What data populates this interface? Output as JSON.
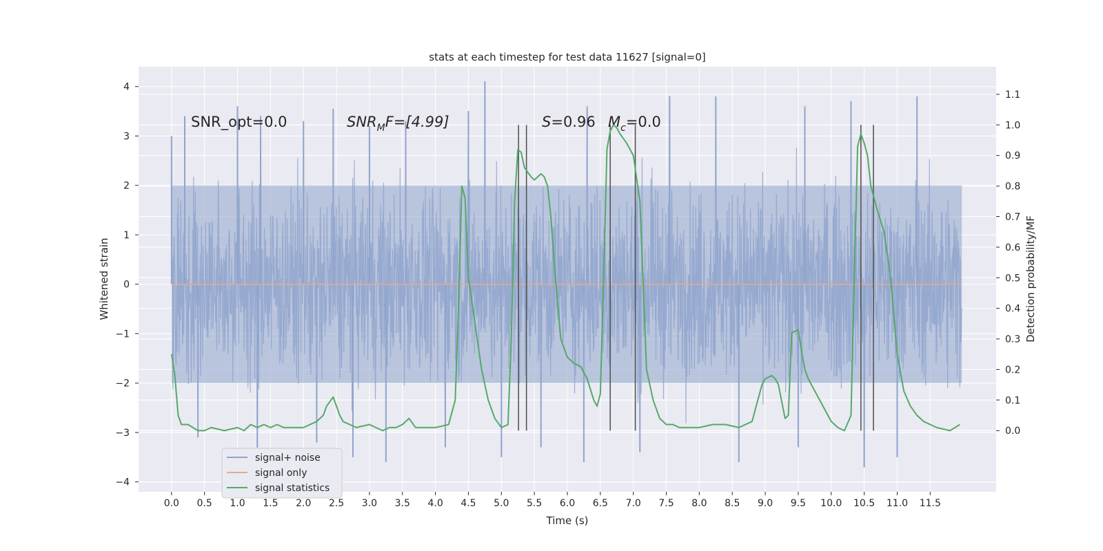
{
  "chart_data": {
    "type": "line",
    "title": "stats at each timestep for test data 11627 [signal=0]",
    "xlabel": "Time (s)",
    "ylabel_left": "Whitened strain",
    "ylabel_right": "Detection probability/MF",
    "xlim": [
      -0.5,
      12.5
    ],
    "ylim_left": [
      -4.2,
      4.4
    ],
    "ylim_right": [
      -0.2,
      1.19
    ],
    "x_ticks": [
      "0.0",
      "0.5",
      "1.0",
      "1.5",
      "2.0",
      "2.5",
      "3.0",
      "3.5",
      "4.0",
      "4.5",
      "5.0",
      "5.5",
      "6.0",
      "6.5",
      "7.0",
      "7.5",
      "8.0",
      "8.5",
      "9.0",
      "9.5",
      "10.0",
      "10.5",
      "11.0",
      "11.5"
    ],
    "y_left_ticks": [
      "4",
      "3",
      "2",
      "1",
      "0",
      "−1",
      "−2",
      "−3",
      "−4"
    ],
    "y_right_ticks": [
      "1.1",
      "1.0",
      "0.9",
      "0.8",
      "0.7",
      "0.6",
      "0.5",
      "0.4",
      "0.3",
      "0.2",
      "0.1",
      "0.0"
    ],
    "grid": true,
    "legend_position": "lower-left",
    "annotations": {
      "snr_opt": "SNR_opt=0.0",
      "snr_mf_main": "SNR",
      "snr_mf_sub": "M",
      "snr_mf_rest": "F=[4.99]",
      "s_main": "S",
      "s_rest": "=0.96",
      "mc_main": "M",
      "mc_sub": "c",
      "mc_rest": "=0.0"
    },
    "series": [
      {
        "name": "signal+ noise",
        "color": "#8fa4cc",
        "x_range": [
          0.0,
          11.98
        ],
        "envelope_typical": [
          -2.0,
          2.0
        ],
        "peaks": [
          {
            "x": 0.0,
            "y": 3.0
          },
          {
            "x": 0.2,
            "y": 3.4
          },
          {
            "x": 1.0,
            "y": 3.6
          },
          {
            "x": 1.35,
            "y": 3.4
          },
          {
            "x": 2.0,
            "y": 3.3
          },
          {
            "x": 2.45,
            "y": 3.55
          },
          {
            "x": 3.0,
            "y": 3.2
          },
          {
            "x": 3.55,
            "y": 3.3
          },
          {
            "x": 4.5,
            "y": 3.5
          },
          {
            "x": 4.75,
            "y": 4.1
          },
          {
            "x": 6.3,
            "y": 3.6
          },
          {
            "x": 7.55,
            "y": 3.8
          },
          {
            "x": 8.25,
            "y": 3.8
          },
          {
            "x": 9.6,
            "y": 3.6
          },
          {
            "x": 10.3,
            "y": 3.7
          },
          {
            "x": 11.3,
            "y": 3.8
          }
        ],
        "troughs": [
          {
            "x": 0.4,
            "y": -3.1
          },
          {
            "x": 1.3,
            "y": -3.3
          },
          {
            "x": 2.2,
            "y": -3.2
          },
          {
            "x": 2.75,
            "y": -3.5
          },
          {
            "x": 3.25,
            "y": -3.6
          },
          {
            "x": 4.15,
            "y": -3.3
          },
          {
            "x": 5.0,
            "y": -3.5
          },
          {
            "x": 5.6,
            "y": -3.3
          },
          {
            "x": 6.25,
            "y": -3.6
          },
          {
            "x": 7.1,
            "y": -3.4
          },
          {
            "x": 8.6,
            "y": -3.6
          },
          {
            "x": 9.5,
            "y": -3.3
          },
          {
            "x": 10.5,
            "y": -3.7
          },
          {
            "x": 11.0,
            "y": -3.5
          }
        ]
      },
      {
        "name": "signal only",
        "color": "#e8a98c",
        "x": [
          0.0,
          11.98
        ],
        "y": [
          0.0,
          0.0
        ]
      },
      {
        "name": "signal statistics",
        "color": "#55a868",
        "axis": "right",
        "x": [
          0.0,
          0.05,
          0.1,
          0.15,
          0.25,
          0.4,
          0.5,
          0.6,
          0.8,
          1.0,
          1.1,
          1.2,
          1.3,
          1.4,
          1.5,
          1.6,
          1.7,
          1.8,
          2.0,
          2.2,
          2.3,
          2.35,
          2.45,
          2.55,
          2.6,
          2.8,
          3.0,
          3.2,
          3.3,
          3.4,
          3.5,
          3.6,
          3.7,
          3.8,
          4.0,
          4.2,
          4.3,
          4.35,
          4.4,
          4.45,
          4.5,
          4.6,
          4.7,
          4.8,
          4.9,
          5.0,
          5.1,
          5.15,
          5.2,
          5.25,
          5.3,
          5.35,
          5.45,
          5.5,
          5.6,
          5.65,
          5.7,
          5.75,
          5.8,
          5.9,
          6.0,
          6.1,
          6.2,
          6.3,
          6.4,
          6.45,
          6.5,
          6.55,
          6.6,
          6.65,
          6.7,
          6.75,
          6.8,
          6.9,
          7.0,
          7.1,
          7.2,
          7.3,
          7.4,
          7.5,
          7.6,
          7.7,
          8.0,
          8.2,
          8.4,
          8.6,
          8.8,
          8.95,
          9.0,
          9.1,
          9.15,
          9.2,
          9.3,
          9.35,
          9.4,
          9.5,
          9.55,
          9.6,
          9.65,
          9.7,
          9.8,
          9.9,
          10.0,
          10.1,
          10.2,
          10.3,
          10.35,
          10.4,
          10.45,
          10.5,
          10.55,
          10.6,
          10.65,
          10.7,
          10.8,
          10.9,
          11.0,
          11.1,
          11.2,
          11.3,
          11.4,
          11.6,
          11.8,
          11.95
        ],
        "y": [
          0.25,
          0.18,
          0.05,
          0.02,
          0.02,
          0.0,
          0.0,
          0.01,
          0.0,
          0.01,
          0.0,
          0.02,
          0.01,
          0.02,
          0.01,
          0.02,
          0.01,
          0.01,
          0.01,
          0.03,
          0.05,
          0.08,
          0.11,
          0.05,
          0.03,
          0.01,
          0.02,
          0.0,
          0.01,
          0.01,
          0.02,
          0.04,
          0.01,
          0.01,
          0.01,
          0.02,
          0.1,
          0.4,
          0.8,
          0.76,
          0.5,
          0.35,
          0.2,
          0.1,
          0.04,
          0.01,
          0.02,
          0.3,
          0.75,
          0.92,
          0.91,
          0.86,
          0.83,
          0.82,
          0.84,
          0.83,
          0.8,
          0.7,
          0.55,
          0.3,
          0.24,
          0.22,
          0.21,
          0.17,
          0.1,
          0.08,
          0.12,
          0.5,
          0.92,
          0.98,
          1.0,
          0.99,
          0.97,
          0.94,
          0.9,
          0.75,
          0.2,
          0.1,
          0.04,
          0.02,
          0.02,
          0.01,
          0.01,
          0.02,
          0.02,
          0.01,
          0.03,
          0.15,
          0.17,
          0.18,
          0.17,
          0.15,
          0.04,
          0.05,
          0.32,
          0.33,
          0.26,
          0.2,
          0.17,
          0.15,
          0.11,
          0.07,
          0.03,
          0.01,
          0.0,
          0.05,
          0.5,
          0.93,
          0.97,
          0.94,
          0.9,
          0.8,
          0.76,
          0.72,
          0.65,
          0.5,
          0.25,
          0.13,
          0.08,
          0.05,
          0.03,
          0.01,
          0.0,
          0.02
        ]
      }
    ],
    "vertical_markers_x": [
      5.26,
      5.38,
      6.65,
      7.03,
      10.45,
      10.64
    ],
    "vertical_markers_color": "#555555"
  }
}
